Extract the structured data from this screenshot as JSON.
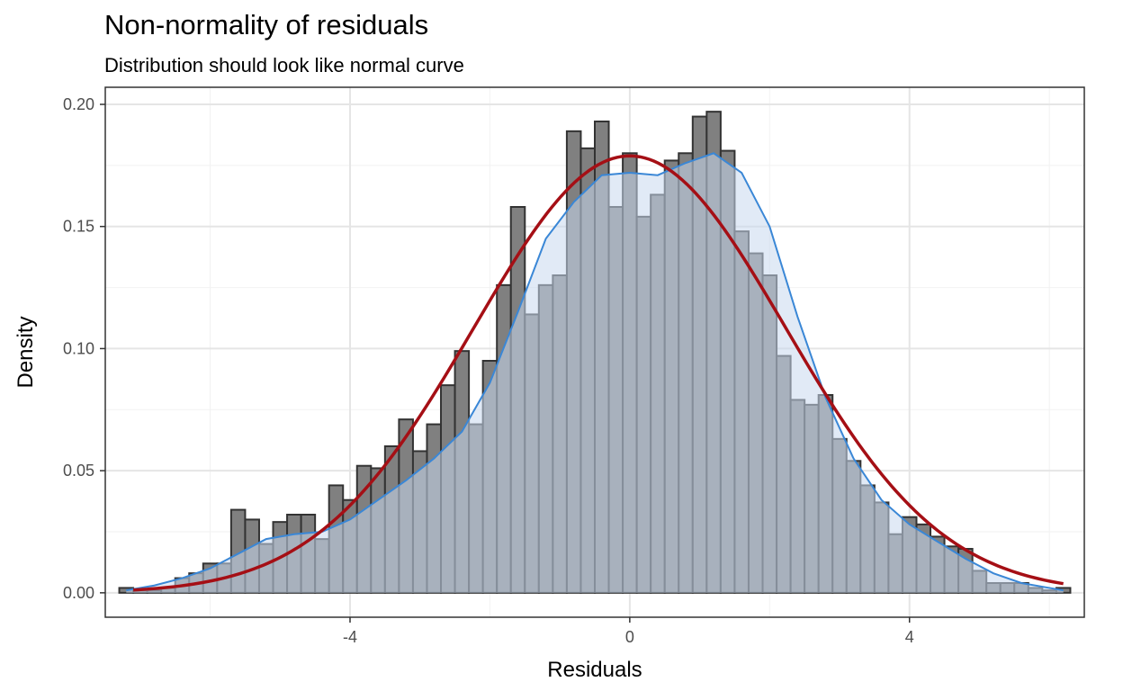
{
  "title": "Non-normality of residuals",
  "subtitle": "Distribution should look like normal curve",
  "colors": {
    "bar_fill": "#808080",
    "bar_stroke": "#333333",
    "density_fill": "#c9d8ef",
    "density_line": "#3a87d6",
    "normal_line": "#a50f15",
    "grid_major": "#e5e5e5",
    "grid_minor": "#f2f2f2",
    "panel_border": "#333333"
  },
  "chart_data": {
    "type": "histogram",
    "xlabel": "Residuals",
    "ylabel": "Density",
    "xlim": [
      -7.5,
      6.5
    ],
    "ylim": [
      -0.01,
      0.207
    ],
    "x_ticks": [
      -4,
      0,
      4
    ],
    "x_tick_labels": [
      "-4",
      "0",
      "4"
    ],
    "y_ticks": [
      0.0,
      0.05,
      0.1,
      0.15,
      0.2
    ],
    "y_tick_labels": [
      "0.00",
      "0.05",
      "0.10",
      "0.15",
      "0.20"
    ],
    "grid": true,
    "bin_width": 0.2,
    "bins": [
      {
        "x": -7.2,
        "y": 0.002
      },
      {
        "x": -7.0,
        "y": 0.001
      },
      {
        "x": -6.8,
        "y": 0.001
      },
      {
        "x": -6.6,
        "y": 0.002
      },
      {
        "x": -6.4,
        "y": 0.006
      },
      {
        "x": -6.2,
        "y": 0.008
      },
      {
        "x": -6.0,
        "y": 0.012
      },
      {
        "x": -5.8,
        "y": 0.012
      },
      {
        "x": -5.6,
        "y": 0.034
      },
      {
        "x": -5.4,
        "y": 0.03
      },
      {
        "x": -5.2,
        "y": 0.02
      },
      {
        "x": -5.0,
        "y": 0.029
      },
      {
        "x": -4.8,
        "y": 0.032
      },
      {
        "x": -4.6,
        "y": 0.032
      },
      {
        "x": -4.4,
        "y": 0.022
      },
      {
        "x": -4.2,
        "y": 0.044
      },
      {
        "x": -4.0,
        "y": 0.038
      },
      {
        "x": -3.8,
        "y": 0.052
      },
      {
        "x": -3.6,
        "y": 0.051
      },
      {
        "x": -3.4,
        "y": 0.06
      },
      {
        "x": -3.2,
        "y": 0.071
      },
      {
        "x": -3.0,
        "y": 0.058
      },
      {
        "x": -2.8,
        "y": 0.069
      },
      {
        "x": -2.6,
        "y": 0.085
      },
      {
        "x": -2.4,
        "y": 0.099
      },
      {
        "x": -2.2,
        "y": 0.069
      },
      {
        "x": -2.0,
        "y": 0.095
      },
      {
        "x": -1.8,
        "y": 0.126
      },
      {
        "x": -1.6,
        "y": 0.158
      },
      {
        "x": -1.4,
        "y": 0.114
      },
      {
        "x": -1.2,
        "y": 0.126
      },
      {
        "x": -1.0,
        "y": 0.13
      },
      {
        "x": -0.8,
        "y": 0.189
      },
      {
        "x": -0.6,
        "y": 0.182
      },
      {
        "x": -0.4,
        "y": 0.193
      },
      {
        "x": -0.2,
        "y": 0.158
      },
      {
        "x": 0.0,
        "y": 0.18
      },
      {
        "x": 0.2,
        "y": 0.154
      },
      {
        "x": 0.4,
        "y": 0.163
      },
      {
        "x": 0.6,
        "y": 0.177
      },
      {
        "x": 0.8,
        "y": 0.18
      },
      {
        "x": 1.0,
        "y": 0.195
      },
      {
        "x": 1.2,
        "y": 0.197
      },
      {
        "x": 1.4,
        "y": 0.181
      },
      {
        "x": 1.6,
        "y": 0.148
      },
      {
        "x": 1.8,
        "y": 0.139
      },
      {
        "x": 2.0,
        "y": 0.13
      },
      {
        "x": 2.2,
        "y": 0.097
      },
      {
        "x": 2.4,
        "y": 0.079
      },
      {
        "x": 2.6,
        "y": 0.077
      },
      {
        "x": 2.8,
        "y": 0.081
      },
      {
        "x": 3.0,
        "y": 0.063
      },
      {
        "x": 3.2,
        "y": 0.054
      },
      {
        "x": 3.4,
        "y": 0.044
      },
      {
        "x": 3.6,
        "y": 0.037
      },
      {
        "x": 3.8,
        "y": 0.024
      },
      {
        "x": 4.0,
        "y": 0.031
      },
      {
        "x": 4.2,
        "y": 0.028
      },
      {
        "x": 4.4,
        "y": 0.023
      },
      {
        "x": 4.6,
        "y": 0.019
      },
      {
        "x": 4.8,
        "y": 0.018
      },
      {
        "x": 5.0,
        "y": 0.009
      },
      {
        "x": 5.2,
        "y": 0.004
      },
      {
        "x": 5.4,
        "y": 0.004
      },
      {
        "x": 5.6,
        "y": 0.004
      },
      {
        "x": 5.8,
        "y": 0.002
      },
      {
        "x": 6.0,
        "y": 0.001
      },
      {
        "x": 6.2,
        "y": 0.002
      }
    ],
    "density_curve": [
      [
        -7.2,
        0.001
      ],
      [
        -6.8,
        0.003
      ],
      [
        -6.4,
        0.006
      ],
      [
        -6.0,
        0.01
      ],
      [
        -5.6,
        0.016
      ],
      [
        -5.2,
        0.022
      ],
      [
        -4.8,
        0.024
      ],
      [
        -4.4,
        0.025
      ],
      [
        -4.0,
        0.03
      ],
      [
        -3.6,
        0.038
      ],
      [
        -3.2,
        0.046
      ],
      [
        -2.8,
        0.055
      ],
      [
        -2.4,
        0.066
      ],
      [
        -2.0,
        0.086
      ],
      [
        -1.6,
        0.115
      ],
      [
        -1.2,
        0.145
      ],
      [
        -0.8,
        0.16
      ],
      [
        -0.4,
        0.171
      ],
      [
        0.0,
        0.172
      ],
      [
        0.4,
        0.171
      ],
      [
        0.8,
        0.176
      ],
      [
        1.2,
        0.18
      ],
      [
        1.6,
        0.172
      ],
      [
        2.0,
        0.15
      ],
      [
        2.4,
        0.113
      ],
      [
        2.8,
        0.08
      ],
      [
        3.2,
        0.055
      ],
      [
        3.6,
        0.038
      ],
      [
        4.0,
        0.028
      ],
      [
        4.4,
        0.021
      ],
      [
        4.8,
        0.014
      ],
      [
        5.2,
        0.008
      ],
      [
        5.6,
        0.004
      ],
      [
        6.0,
        0.002
      ],
      [
        6.2,
        0.001
      ]
    ],
    "normal_curve": {
      "mean": 0.0,
      "sd": 2.23,
      "x_range": [
        -7.1,
        6.2
      ]
    }
  }
}
